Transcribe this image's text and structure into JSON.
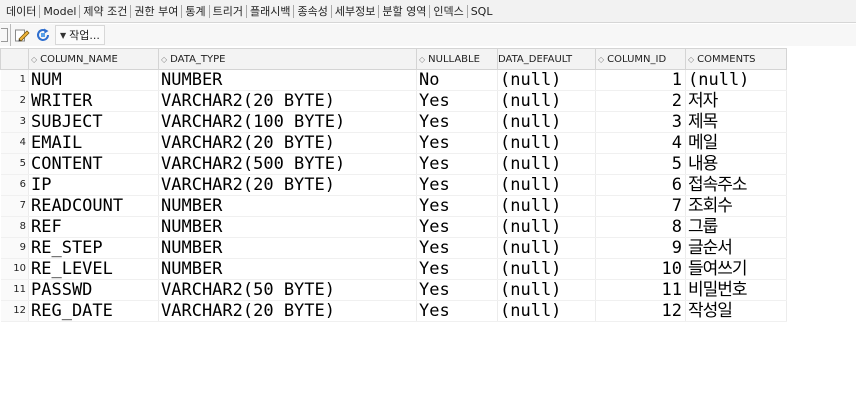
{
  "tabs": [
    {
      "label": "데이터"
    },
    {
      "label": "Model"
    },
    {
      "label": "제약 조건"
    },
    {
      "label": "권한 부여"
    },
    {
      "label": "통계"
    },
    {
      "label": "트리거"
    },
    {
      "label": "플래시백"
    },
    {
      "label": "종속성"
    },
    {
      "label": "세부정보"
    },
    {
      "label": "분할 영역"
    },
    {
      "label": "인덱스"
    },
    {
      "label": "SQL"
    }
  ],
  "toolbar": {
    "actions_label": "작업..."
  },
  "table": {
    "columns": [
      "COLUMN_NAME",
      "DATA_TYPE",
      "NULLABLE",
      "DATA_DEFAULT",
      "COLUMN_ID",
      "COMMENTS"
    ],
    "rows": [
      {
        "num": "1",
        "name": "NUM",
        "type": "NUMBER",
        "nullable": "No",
        "default": "(null)",
        "id": "1",
        "comments": "(null)"
      },
      {
        "num": "2",
        "name": "WRITER",
        "type": "VARCHAR2(20 BYTE)",
        "nullable": "Yes",
        "default": "(null)",
        "id": "2",
        "comments": "저자"
      },
      {
        "num": "3",
        "name": "SUBJECT",
        "type": "VARCHAR2(100 BYTE)",
        "nullable": "Yes",
        "default": "(null)",
        "id": "3",
        "comments": "제목"
      },
      {
        "num": "4",
        "name": "EMAIL",
        "type": "VARCHAR2(20 BYTE)",
        "nullable": "Yes",
        "default": "(null)",
        "id": "4",
        "comments": "메일"
      },
      {
        "num": "5",
        "name": "CONTENT",
        "type": "VARCHAR2(500 BYTE)",
        "nullable": "Yes",
        "default": "(null)",
        "id": "5",
        "comments": "내용"
      },
      {
        "num": "6",
        "name": "IP",
        "type": "VARCHAR2(20 BYTE)",
        "nullable": "Yes",
        "default": "(null)",
        "id": "6",
        "comments": "접속주소"
      },
      {
        "num": "7",
        "name": "READCOUNT",
        "type": "NUMBER",
        "nullable": "Yes",
        "default": "(null)",
        "id": "7",
        "comments": "조회수"
      },
      {
        "num": "8",
        "name": "REF",
        "type": "NUMBER",
        "nullable": "Yes",
        "default": "(null)",
        "id": "8",
        "comments": "그룹"
      },
      {
        "num": "9",
        "name": "RE_STEP",
        "type": "NUMBER",
        "nullable": "Yes",
        "default": "(null)",
        "id": "9",
        "comments": "글순서"
      },
      {
        "num": "10",
        "name": "RE_LEVEL",
        "type": "NUMBER",
        "nullable": "Yes",
        "default": "(null)",
        "id": "10",
        "comments": "들여쓰기"
      },
      {
        "num": "11",
        "name": "PASSWD",
        "type": "VARCHAR2(50 BYTE)",
        "nullable": "Yes",
        "default": "(null)",
        "id": "11",
        "comments": "비밀번호"
      },
      {
        "num": "12",
        "name": "REG_DATE",
        "type": "VARCHAR2(20 BYTE)",
        "nullable": "Yes",
        "default": "(null)",
        "id": "12",
        "comments": "작성일"
      }
    ]
  }
}
